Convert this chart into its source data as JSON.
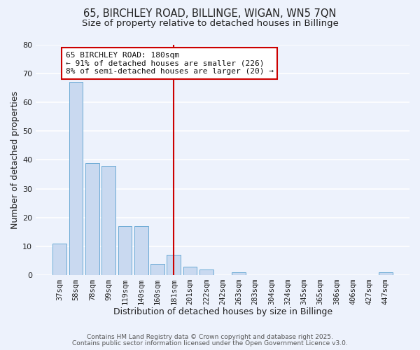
{
  "title": "65, BIRCHLEY ROAD, BILLINGE, WIGAN, WN5 7QN",
  "subtitle": "Size of property relative to detached houses in Billinge",
  "xlabel": "Distribution of detached houses by size in Billinge",
  "ylabel": "Number of detached properties",
  "bar_labels": [
    "37sqm",
    "58sqm",
    "78sqm",
    "99sqm",
    "119sqm",
    "140sqm",
    "160sqm",
    "181sqm",
    "201sqm",
    "222sqm",
    "242sqm",
    "263sqm",
    "283sqm",
    "304sqm",
    "324sqm",
    "345sqm",
    "365sqm",
    "386sqm",
    "406sqm",
    "427sqm",
    "447sqm"
  ],
  "bar_values": [
    11,
    67,
    39,
    38,
    17,
    17,
    4,
    7,
    3,
    2,
    0,
    1,
    0,
    0,
    0,
    0,
    0,
    0,
    0,
    0,
    1
  ],
  "bar_color": "#c9d9f0",
  "bar_edge_color": "#6aaad4",
  "vline_x_index": 7,
  "vline_color": "#cc0000",
  "ylim": [
    0,
    80
  ],
  "yticks": [
    0,
    10,
    20,
    30,
    40,
    50,
    60,
    70,
    80
  ],
  "annotation_title": "65 BIRCHLEY ROAD: 180sqm",
  "annotation_line1": "← 91% of detached houses are smaller (226)",
  "annotation_line2": "8% of semi-detached houses are larger (20) →",
  "footer_line1": "Contains HM Land Registry data © Crown copyright and database right 2025.",
  "footer_line2": "Contains public sector information licensed under the Open Government Licence v3.0.",
  "background_color": "#edf2fc",
  "grid_color": "#ffffff",
  "title_fontsize": 10.5,
  "subtitle_fontsize": 9.5,
  "axis_label_fontsize": 9,
  "tick_fontsize": 7.5,
  "footer_fontsize": 6.5
}
